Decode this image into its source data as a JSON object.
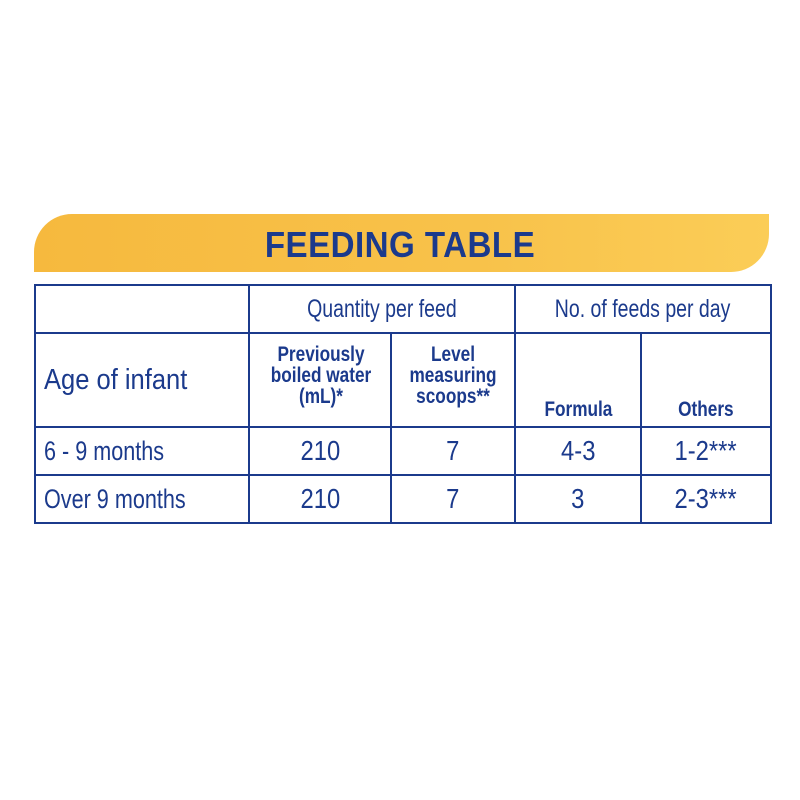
{
  "title": "FEEDING TABLE",
  "colors": {
    "text": "#1b3a8c",
    "banner": "#f8c24a",
    "background": "#ffffff"
  },
  "table": {
    "group_headers": {
      "quantity": "Quantity per feed",
      "feeds": "No. of feeds per day"
    },
    "row_header_label": "Age of infant",
    "sub_headers": {
      "water": "Previously boiled water (mL)*",
      "scoops": "Level measuring scoops**",
      "formula": "Formula",
      "others": "Others"
    },
    "rows": [
      {
        "age": "6 - 9 months",
        "water": "210",
        "scoops": "7",
        "formula": "4-3",
        "others": "1-2***"
      },
      {
        "age": "Over 9 months",
        "water": "210",
        "scoops": "7",
        "formula": "3",
        "others": "2-3***"
      }
    ]
  }
}
